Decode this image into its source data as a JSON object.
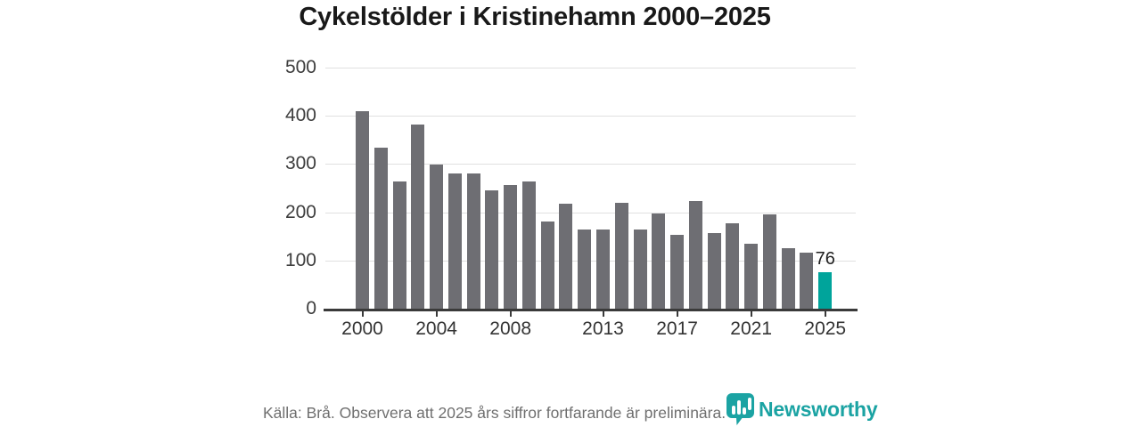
{
  "chart_data": {
    "type": "bar",
    "title": "Cykelstölder i Kristinehamn 2000–2025",
    "categories": [
      2000,
      2001,
      2002,
      2003,
      2004,
      2005,
      2006,
      2007,
      2008,
      2009,
      2010,
      2011,
      2012,
      2013,
      2014,
      2015,
      2016,
      2017,
      2018,
      2019,
      2020,
      2021,
      2022,
      2023,
      2024,
      2025
    ],
    "values": [
      410,
      334,
      264,
      381,
      298,
      280,
      281,
      245,
      257,
      264,
      180,
      217,
      164,
      164,
      219,
      164,
      197,
      154,
      224,
      157,
      178,
      135,
      195,
      126,
      117,
      76
    ],
    "xlabel": "",
    "ylabel": "",
    "ylim": [
      0,
      500
    ],
    "y_ticks": [
      0,
      100,
      200,
      300,
      400,
      500
    ],
    "x_tick_years": [
      2000,
      2004,
      2008,
      2013,
      2017,
      2021,
      2025
    ],
    "grid": "horizontal",
    "legend": "none",
    "bar_color": "#6e6e73",
    "highlight": {
      "year": 2025,
      "color": "#00a49b",
      "note": "preliminary"
    },
    "annotation": {
      "text": "76",
      "year": 2025
    }
  },
  "footer": {
    "source_note": "Källa: Brå. Observera att 2025 års siffror fortfarande är preliminära."
  },
  "logo": {
    "text": "Newsworthy",
    "icon": "newsworthy-bar-chart-bubble-icon",
    "color": "#1ba3a3"
  }
}
